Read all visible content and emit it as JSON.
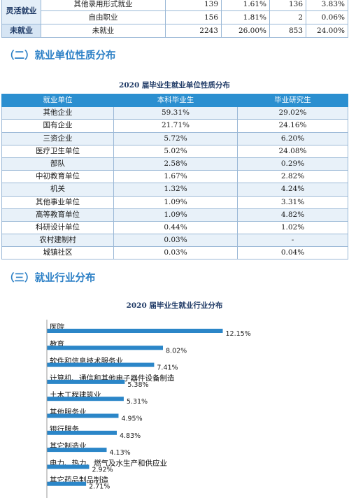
{
  "top_table": {
    "flex_label": "灵活就业",
    "unemployed_label": "未就业",
    "rows": [
      {
        "name": "其他录用形式就业",
        "n1": "139",
        "p1": "1.61%",
        "n2": "136",
        "p2": "3.83%"
      },
      {
        "name": "自由职业",
        "n1": "156",
        "p1": "1.81%",
        "n2": "2",
        "p2": "0.06%"
      },
      {
        "name": "未就业",
        "n1": "2243",
        "p1": "26.00%",
        "n2": "853",
        "p2": "24.00%"
      }
    ]
  },
  "section2": {
    "title": "（二）就业单位性质分布",
    "caption": "2020 届毕业生就业单位性质分布",
    "headers": [
      "就业单位",
      "本科毕业生",
      "毕业研究生"
    ],
    "rows": [
      [
        "其他企业",
        "59.31%",
        "29.02%"
      ],
      [
        "国有企业",
        "21.71%",
        "24.16%"
      ],
      [
        "三资企业",
        "5.72%",
        "6.20%"
      ],
      [
        "医疗卫生单位",
        "5.02%",
        "24.08%"
      ],
      [
        "部队",
        "2.58%",
        "0.29%"
      ],
      [
        "中初教育单位",
        "1.67%",
        "2.82%"
      ],
      [
        "机关",
        "1.32%",
        "4.24%"
      ],
      [
        "其他事业单位",
        "1.09%",
        "3.31%"
      ],
      [
        "高等教育单位",
        "1.09%",
        "4.82%"
      ],
      [
        "科研设计单位",
        "0.44%",
        "1.02%"
      ],
      [
        "农村建制村",
        "0.03%",
        "-"
      ],
      [
        "城镇社区",
        "0.03%",
        "0.04%"
      ]
    ]
  },
  "section3": {
    "title": "（三）就业行业分布",
    "caption": "2020 届毕业生就业行业分布"
  },
  "chart_data": {
    "type": "bar",
    "orientation": "horizontal",
    "title": "2020 届毕业生就业行业分布",
    "bar_color": "#2b86c8",
    "categories": [
      "医院",
      "教育",
      "软件和信息技术服务业",
      "计算机、通信和其他电子器件设备制造",
      "土木工程建筑业",
      "其他服务业",
      "银行服务",
      "其它制造业",
      "电力、热力、燃气及水生产和供应业",
      "其它药品制品制造"
    ],
    "values": [
      12.15,
      8.02,
      7.41,
      5.38,
      5.31,
      4.95,
      4.83,
      4.13,
      2.92,
      2.71
    ],
    "value_labels": [
      "12.15%",
      "8.02%",
      "7.41%",
      "5.38%",
      "5.31%",
      "4.95%",
      "4.83%",
      "4.13%",
      "2.92%",
      "2.71%"
    ]
  }
}
